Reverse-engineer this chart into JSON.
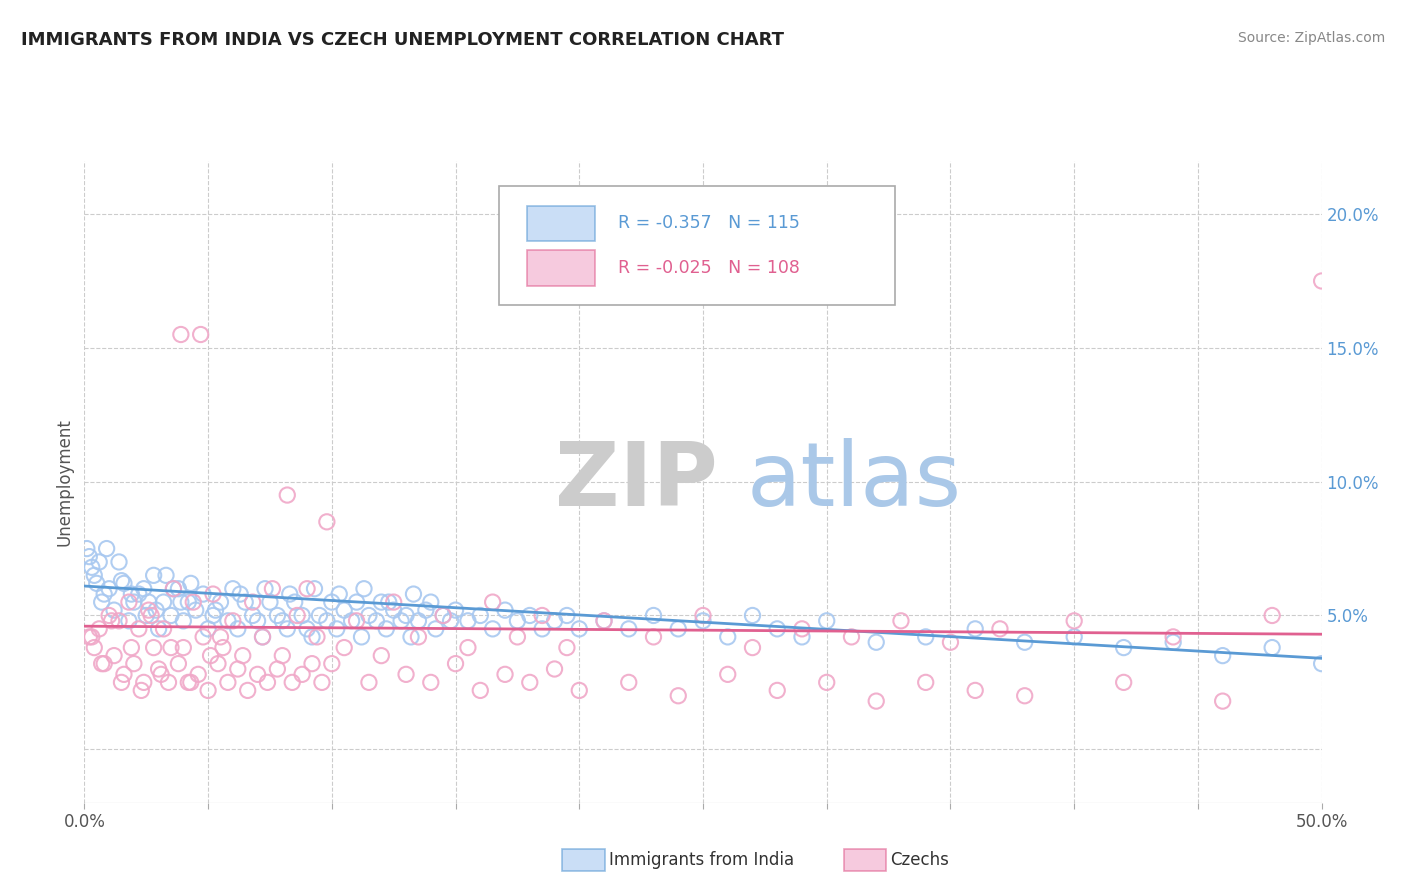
{
  "title": "IMMIGRANTS FROM INDIA VS CZECH UNEMPLOYMENT CORRELATION CHART",
  "source_text": "Source: ZipAtlas.com",
  "ylabel": "Unemployment",
  "watermark_zip": "ZIP",
  "watermark_atlas": "atlas",
  "legend_entries": [
    {
      "label": "Immigrants from India",
      "R": -0.357,
      "N": 115,
      "color": "#a8c8f0",
      "line_color": "#5a9ad4"
    },
    {
      "label": "Czechs",
      "R": -0.025,
      "N": 108,
      "color": "#f0a8c8",
      "line_color": "#e06090"
    }
  ],
  "xlim": [
    0.0,
    0.5
  ],
  "ylim": [
    -0.02,
    0.22
  ],
  "xticks": [
    0.0,
    0.05,
    0.1,
    0.15,
    0.2,
    0.25,
    0.3,
    0.35,
    0.4,
    0.45,
    0.5
  ],
  "yticks_right": [
    0.05,
    0.1,
    0.15,
    0.2
  ],
  "ytick_right_labels": [
    "5.0%",
    "10.0%",
    "15.0%",
    "20.0%"
  ],
  "blue_color": "#a8c8f0",
  "pink_color": "#f0a8c8",
  "blue_line_color": "#5a9ad4",
  "pink_line_color": "#e06090",
  "background_color": "#ffffff",
  "grid_color": "#cccccc",
  "title_color": "#222222",
  "source_color": "#888888",
  "watermark_zip_color": "#cccccc",
  "watermark_atlas_color": "#aac8e8",
  "blue_scatter_x": [
    0.003,
    0.005,
    0.007,
    0.002,
    0.008,
    0.004,
    0.006,
    0.01,
    0.012,
    0.009,
    0.015,
    0.018,
    0.02,
    0.014,
    0.022,
    0.025,
    0.028,
    0.03,
    0.024,
    0.032,
    0.035,
    0.038,
    0.04,
    0.033,
    0.042,
    0.045,
    0.048,
    0.05,
    0.043,
    0.052,
    0.055,
    0.058,
    0.06,
    0.053,
    0.062,
    0.065,
    0.068,
    0.07,
    0.063,
    0.072,
    0.075,
    0.078,
    0.08,
    0.073,
    0.082,
    0.085,
    0.088,
    0.09,
    0.083,
    0.092,
    0.095,
    0.098,
    0.1,
    0.093,
    0.102,
    0.105,
    0.108,
    0.11,
    0.103,
    0.112,
    0.115,
    0.118,
    0.12,
    0.113,
    0.122,
    0.125,
    0.128,
    0.13,
    0.123,
    0.132,
    0.135,
    0.138,
    0.14,
    0.133,
    0.142,
    0.145,
    0.148,
    0.15,
    0.155,
    0.16,
    0.165,
    0.17,
    0.175,
    0.18,
    0.185,
    0.19,
    0.195,
    0.2,
    0.21,
    0.22,
    0.23,
    0.24,
    0.25,
    0.26,
    0.27,
    0.28,
    0.29,
    0.3,
    0.32,
    0.34,
    0.36,
    0.38,
    0.4,
    0.42,
    0.44,
    0.46,
    0.48,
    0.5,
    0.001,
    0.016,
    0.019,
    0.026,
    0.029,
    0.036,
    0.039
  ],
  "blue_scatter_y": [
    0.068,
    0.062,
    0.055,
    0.072,
    0.058,
    0.065,
    0.07,
    0.06,
    0.052,
    0.075,
    0.063,
    0.048,
    0.055,
    0.07,
    0.058,
    0.05,
    0.065,
    0.045,
    0.06,
    0.055,
    0.05,
    0.06,
    0.048,
    0.065,
    0.055,
    0.052,
    0.058,
    0.045,
    0.062,
    0.05,
    0.055,
    0.048,
    0.06,
    0.052,
    0.045,
    0.055,
    0.05,
    0.048,
    0.058,
    0.042,
    0.055,
    0.05,
    0.048,
    0.06,
    0.045,
    0.055,
    0.05,
    0.045,
    0.058,
    0.042,
    0.05,
    0.048,
    0.055,
    0.06,
    0.045,
    0.052,
    0.048,
    0.055,
    0.058,
    0.042,
    0.05,
    0.048,
    0.055,
    0.06,
    0.045,
    0.052,
    0.048,
    0.05,
    0.055,
    0.042,
    0.048,
    0.052,
    0.055,
    0.058,
    0.045,
    0.05,
    0.048,
    0.052,
    0.048,
    0.05,
    0.045,
    0.052,
    0.048,
    0.05,
    0.045,
    0.048,
    0.05,
    0.045,
    0.048,
    0.045,
    0.05,
    0.045,
    0.048,
    0.042,
    0.05,
    0.045,
    0.042,
    0.048,
    0.04,
    0.042,
    0.045,
    0.04,
    0.042,
    0.038,
    0.04,
    0.035,
    0.038,
    0.032,
    0.075,
    0.062,
    0.058,
    0.055,
    0.052,
    0.06,
    0.055
  ],
  "pink_scatter_x": [
    0.002,
    0.004,
    0.006,
    0.008,
    0.01,
    0.012,
    0.014,
    0.016,
    0.018,
    0.02,
    0.022,
    0.024,
    0.026,
    0.028,
    0.03,
    0.032,
    0.034,
    0.036,
    0.038,
    0.04,
    0.042,
    0.044,
    0.046,
    0.048,
    0.05,
    0.052,
    0.054,
    0.056,
    0.058,
    0.06,
    0.062,
    0.064,
    0.066,
    0.068,
    0.07,
    0.072,
    0.074,
    0.076,
    0.078,
    0.08,
    0.082,
    0.084,
    0.086,
    0.088,
    0.09,
    0.092,
    0.094,
    0.096,
    0.098,
    0.1,
    0.105,
    0.11,
    0.115,
    0.12,
    0.125,
    0.13,
    0.135,
    0.14,
    0.145,
    0.15,
    0.155,
    0.16,
    0.165,
    0.17,
    0.175,
    0.18,
    0.185,
    0.19,
    0.195,
    0.2,
    0.21,
    0.22,
    0.23,
    0.24,
    0.25,
    0.26,
    0.27,
    0.28,
    0.29,
    0.3,
    0.31,
    0.32,
    0.33,
    0.34,
    0.35,
    0.36,
    0.37,
    0.38,
    0.4,
    0.42,
    0.44,
    0.46,
    0.48,
    0.5,
    0.003,
    0.007,
    0.011,
    0.015,
    0.019,
    0.023,
    0.027,
    0.031,
    0.035,
    0.039,
    0.043,
    0.047,
    0.051,
    0.055
  ],
  "pink_scatter_y": [
    0.042,
    0.038,
    0.045,
    0.032,
    0.05,
    0.035,
    0.048,
    0.028,
    0.055,
    0.032,
    0.045,
    0.025,
    0.052,
    0.038,
    0.03,
    0.045,
    0.025,
    0.06,
    0.032,
    0.038,
    0.025,
    0.055,
    0.028,
    0.042,
    0.022,
    0.058,
    0.032,
    0.038,
    0.025,
    0.048,
    0.03,
    0.035,
    0.022,
    0.055,
    0.028,
    0.042,
    0.025,
    0.06,
    0.03,
    0.035,
    0.095,
    0.025,
    0.05,
    0.028,
    0.06,
    0.032,
    0.042,
    0.025,
    0.085,
    0.032,
    0.038,
    0.048,
    0.025,
    0.035,
    0.055,
    0.028,
    0.042,
    0.025,
    0.05,
    0.032,
    0.038,
    0.022,
    0.055,
    0.028,
    0.042,
    0.025,
    0.05,
    0.03,
    0.038,
    0.022,
    0.048,
    0.025,
    0.042,
    0.02,
    0.05,
    0.028,
    0.038,
    0.022,
    0.045,
    0.025,
    0.042,
    0.018,
    0.048,
    0.025,
    0.04,
    0.022,
    0.045,
    0.02,
    0.048,
    0.025,
    0.042,
    0.018,
    0.05,
    0.175,
    0.042,
    0.032,
    0.048,
    0.025,
    0.038,
    0.022,
    0.05,
    0.028,
    0.038,
    0.155,
    0.025,
    0.155,
    0.035,
    0.042
  ],
  "blue_trend_x": [
    0.0,
    0.5
  ],
  "blue_trend_y_start": 0.061,
  "blue_trend_y_end": 0.034,
  "pink_trend_x": [
    0.0,
    0.5
  ],
  "pink_trend_y_start": 0.046,
  "pink_trend_y_end": 0.043
}
